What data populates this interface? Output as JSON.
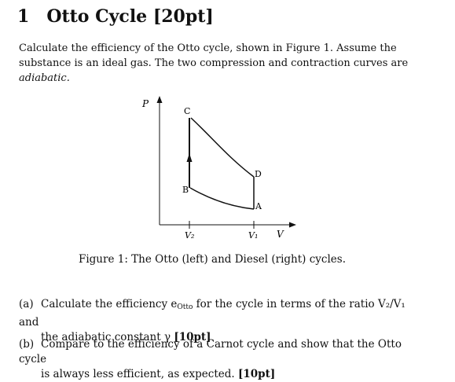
{
  "section": {
    "number": "1",
    "title": "Otto Cycle [20pt]"
  },
  "intro": {
    "text": "Calculate the efficiency of the Otto cycle, shown in Figure 1. Assume the substance is an ideal gas. The two compression and contraction curves are",
    "emph": "adiabatic."
  },
  "figure": {
    "axis_p": "P",
    "axis_v": "V",
    "points": {
      "a": "A",
      "b": "B",
      "c": "C",
      "d": "D"
    },
    "tick_v2": "V₂",
    "tick_v1": "V₁",
    "caption": "Figure 1: The Otto (left) and Diesel (right) cycles."
  },
  "parts": {
    "a": {
      "label": "(a)",
      "line1": "Calculate the efficiency e",
      "line1_sub": "Otto",
      "line1_rest": " for the cycle in terms of the ratio V₂/V₁ and",
      "line2": "the adiabatic constant γ",
      "points": "[10pt]"
    },
    "b": {
      "label": "(b)",
      "line1": "Compare to the efficiency of a Carnot cycle and show that the Otto cycle",
      "line2": "is always less efficient, as expected.",
      "points": "[10pt]"
    }
  }
}
